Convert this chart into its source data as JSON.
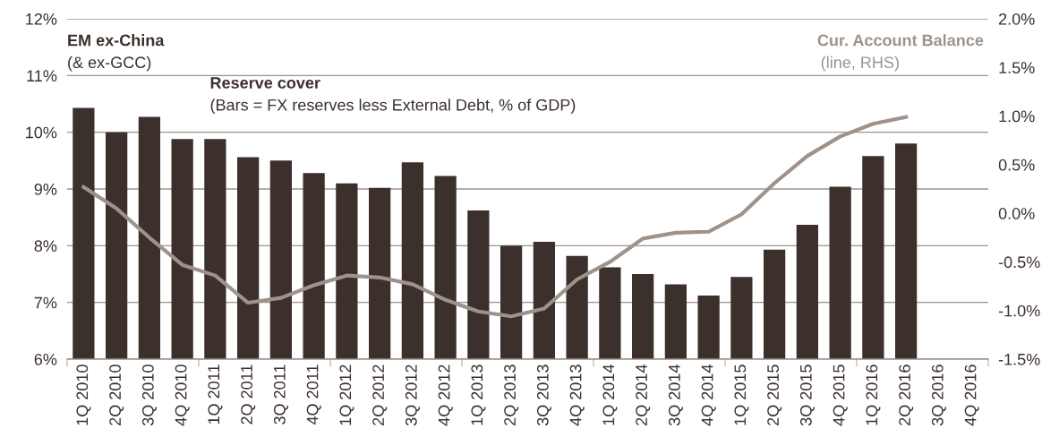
{
  "chart_data": {
    "type": "bar",
    "title": "EM ex-China",
    "subtitle": "(& ex-GCC)",
    "annotations": [
      "(Bars = FX reserves less External Debt, % of GDP)",
      "(line, RHS)"
    ],
    "categories": [
      "1Q 2010",
      "2Q 2010",
      "3Q 2010",
      "4Q 2010",
      "1Q 2011",
      "2Q 2011",
      "3Q 2011",
      "4Q 2011",
      "1Q 2012",
      "2Q 2012",
      "3Q 2012",
      "4Q 2012",
      "1Q 2013",
      "2Q 2013",
      "3Q 2013",
      "4Q 2013",
      "1Q 2014",
      "2Q 2014",
      "3Q 2014",
      "4Q 2014",
      "1Q 2015",
      "2Q 2015",
      "3Q 2015",
      "4Q 2015",
      "1Q 2016",
      "2Q 2016",
      "3Q 2016",
      "4Q 2016"
    ],
    "series": [
      {
        "name": "Reserve cover",
        "color": "#3b302c",
        "values": [
          10.43,
          10.0,
          10.27,
          9.88,
          9.88,
          9.56,
          9.5,
          9.28,
          9.1,
          9.02,
          9.47,
          9.23,
          8.62,
          8.0,
          8.07,
          7.82,
          7.62,
          7.5,
          7.32,
          7.12,
          7.45,
          7.93,
          8.37,
          9.04,
          9.58,
          9.8,
          null,
          null
        ]
      },
      {
        "name": "Cur. Account Balance",
        "type": "line",
        "axis": "y2",
        "color": "#9e928a",
        "values": [
          0.27,
          0.05,
          -0.25,
          -0.53,
          -0.64,
          -0.92,
          -0.87,
          -0.74,
          -0.64,
          -0.66,
          -0.73,
          -0.89,
          -1.01,
          -1.06,
          -0.98,
          -0.68,
          -0.5,
          -0.26,
          -0.2,
          -0.19,
          -0.01,
          0.31,
          0.59,
          0.79,
          0.92,
          0.99,
          null,
          null
        ]
      }
    ],
    "ylim": [
      6,
      12
    ],
    "yticks": [
      {
        "value": 6,
        "label": "6%"
      },
      {
        "value": 7,
        "label": "7%"
      },
      {
        "value": 8,
        "label": "8%"
      },
      {
        "value": 9,
        "label": "9%"
      },
      {
        "value": 10,
        "label": "10%"
      },
      {
        "value": 11,
        "label": "11%"
      },
      {
        "value": 12,
        "label": "12%"
      }
    ],
    "y2lim": [
      -1.5,
      2.0
    ],
    "y2ticks": [
      {
        "value": -1.5,
        "label": "-1.5%"
      },
      {
        "value": -1.0,
        "label": "-1.0%"
      },
      {
        "value": -0.5,
        "label": "-0.5%"
      },
      {
        "value": 0.0,
        "label": "0.0%"
      },
      {
        "value": 0.5,
        "label": "0.5%"
      },
      {
        "value": 1.0,
        "label": "1.0%"
      },
      {
        "value": 1.5,
        "label": "1.5%"
      },
      {
        "value": 2.0,
        "label": "2.0%"
      }
    ],
    "grid": "y",
    "legend": false
  }
}
